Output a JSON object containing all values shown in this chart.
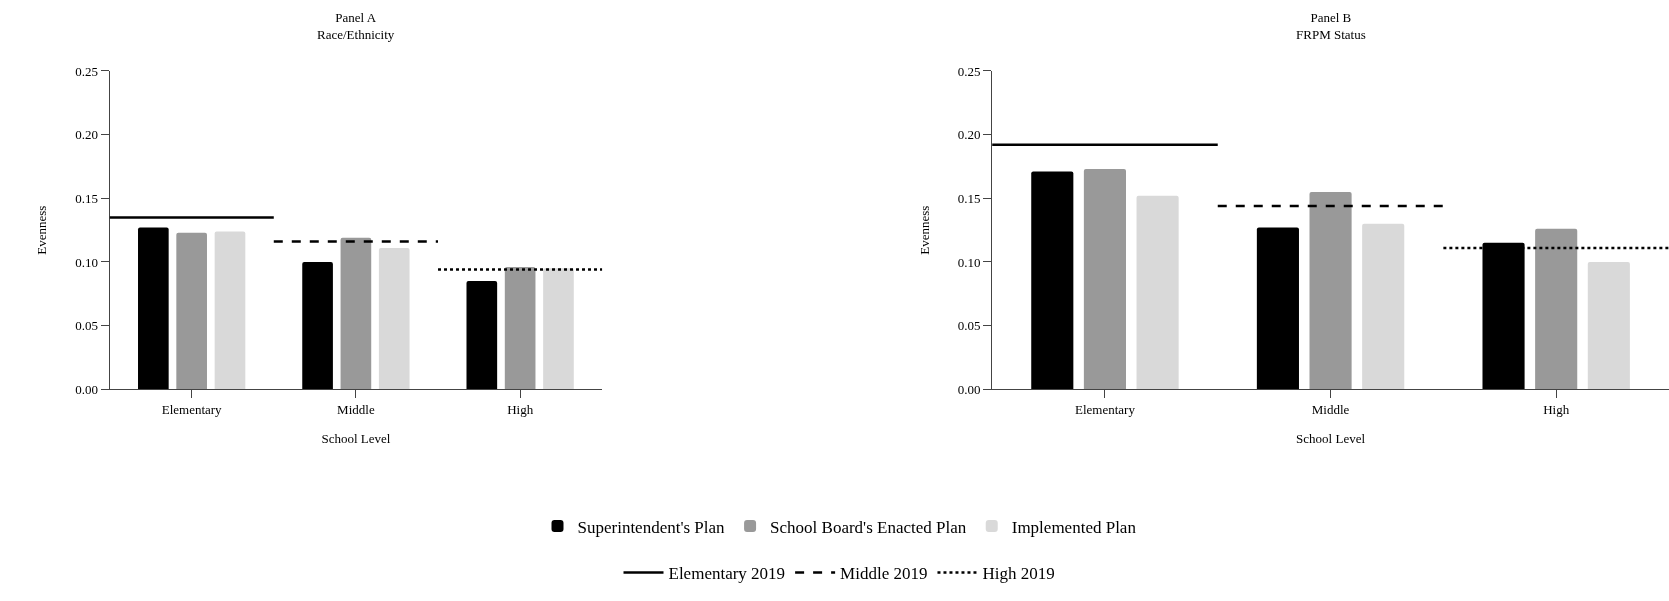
{
  "chart_data": [
    {
      "type": "bar",
      "title": "Panel A",
      "subtitle": "Race/Ethnicity",
      "xlabel": "School Level",
      "ylabel": "Evenness",
      "categories": [
        "Elementary",
        "Middle",
        "High"
      ],
      "series": [
        {
          "name": "Superintendent's Plan",
          "color": "#000000",
          "values": [
            0.127,
            0.1,
            0.085
          ]
        },
        {
          "name": "School Board's Enacted Plan",
          "color": "#999999",
          "values": [
            0.123,
            0.119,
            0.096
          ]
        },
        {
          "name": "Implemented Plan",
          "color": "#d9d9d9",
          "values": [
            0.124,
            0.111,
            0.095
          ]
        }
      ],
      "ylim": [
        0,
        0.25
      ],
      "yticks": [
        {
          "value": 0,
          "label": "0.00"
        },
        {
          "value": 0.05,
          "label": "0.05"
        },
        {
          "value": 0.1,
          "label": "0.10"
        },
        {
          "value": 0.15,
          "label": "0.15"
        },
        {
          "value": 0.2,
          "label": "0.20"
        },
        {
          "value": 0.25,
          "label": "0.25"
        }
      ],
      "ref_lines": [
        {
          "axis": "y",
          "value": 0.135,
          "label": "Elementary 2019",
          "color": "#000000",
          "line_style": "solid"
        },
        {
          "axis": "y",
          "value": 0.116,
          "label": "Middle 2019",
          "color": "#000000",
          "line_style": "dashed"
        },
        {
          "axis": "y",
          "value": 0.094,
          "label": "High 2019",
          "color": "#000000",
          "line_style": "dotted"
        }
      ],
      "legend": "bottom",
      "grid": false
    },
    {
      "type": "bar",
      "title": "Panel B",
      "subtitle": "FRPM Status",
      "xlabel": "School Level",
      "ylabel": "Evenness",
      "categories": [
        "Elementary",
        "Middle",
        "High"
      ],
      "series": [
        {
          "color": "#000000",
          "values": [
            0.171,
            0.127,
            0.115
          ]
        },
        {
          "color": "#999999",
          "values": [
            0.173,
            0.155,
            0.126
          ]
        },
        {
          "color": "#d9d9d9",
          "values": [
            0.152,
            0.13,
            0.1
          ]
        }
      ],
      "ylim": [
        0,
        0.25
      ],
      "yticks": [
        {
          "value": 0,
          "label": "0.00"
        },
        {
          "value": 0.05,
          "label": "0.05"
        },
        {
          "value": 0.1,
          "label": "0.10"
        },
        {
          "value": 0.15,
          "label": "0.15"
        },
        {
          "value": 0.2,
          "label": "0.20"
        },
        {
          "value": 0.25,
          "label": "0.25"
        }
      ],
      "ref_lines": [
        {
          "axis": "y",
          "value": 0.192,
          "color": "#000000",
          "line_style": "solid"
        },
        {
          "axis": "y",
          "value": 0.144,
          "color": "#000000",
          "line_style": "dashed"
        },
        {
          "axis": "y",
          "value": 0.111,
          "color": "#000000",
          "line_style": "dotted"
        }
      ],
      "legend": "bottom",
      "grid": false
    }
  ]
}
